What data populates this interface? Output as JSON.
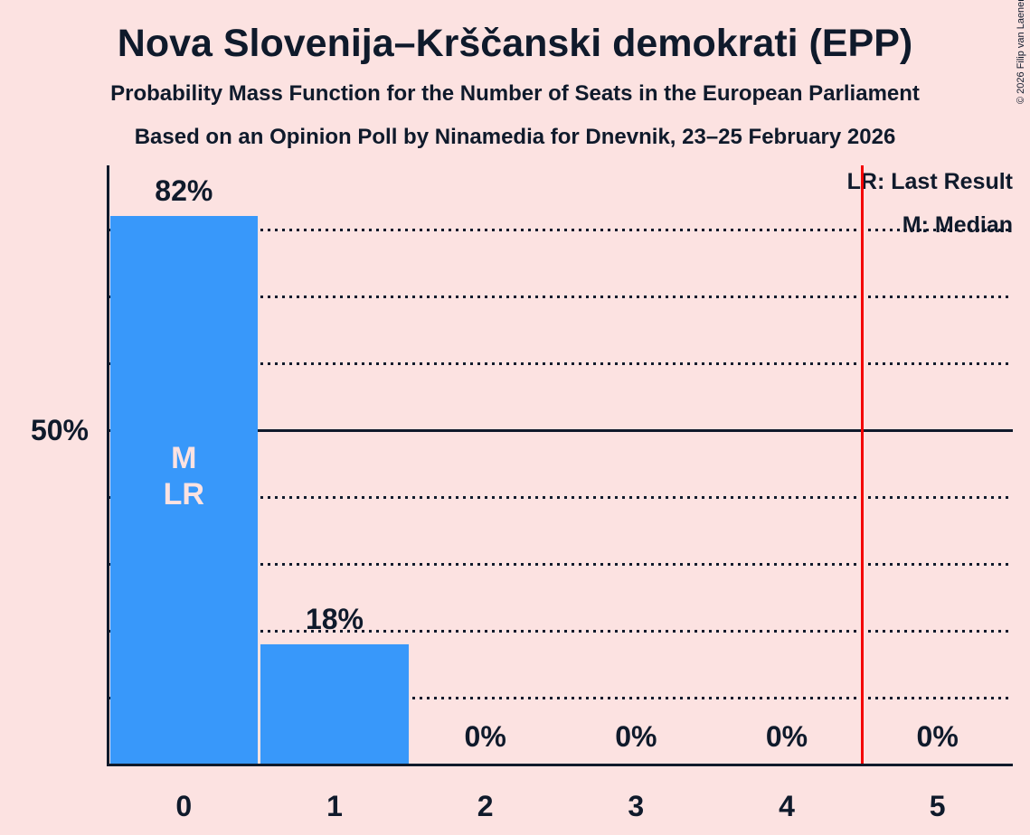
{
  "page": {
    "title": "Nova Slovenija–Krščanski demokrati (EPP)",
    "subtitle": "Probability Mass Function for the Number of Seats in the European Parliament",
    "subsubtitle": "Based on an Opinion Poll by Ninamedia for Dnevnik, 23–25 February 2026",
    "copyright": "© 2026 Filip van Laenen"
  },
  "legend": {
    "last_result": "LR: Last Result",
    "median": "M: Median"
  },
  "y_axis": {
    "label_50": "50%"
  },
  "colors": {
    "background": "#fce2e1",
    "bar": "#3898fa",
    "text": "#0f1a2b",
    "bar_annotation_text": "#fce2e1",
    "red_line": "#f30000"
  },
  "chart_data": {
    "type": "bar",
    "title": "Nova Slovenija–Krščanski demokrati (EPP)",
    "subtitle": "Probability Mass Function for the Number of Seats in the European Parliament",
    "categories": [
      "0",
      "1",
      "2",
      "3",
      "4",
      "5"
    ],
    "values": [
      82,
      18,
      0,
      0,
      0,
      0
    ],
    "value_labels": [
      "82%",
      "18%",
      "0%",
      "0%",
      "0%",
      "0%"
    ],
    "xlabel": "",
    "ylabel": "",
    "ylim": [
      0,
      90
    ],
    "y_tick_labeled": {
      "pct": 50,
      "label": "50%"
    },
    "gridline_pcts": [
      10,
      20,
      30,
      40,
      60,
      70,
      80
    ],
    "solid_line_pct": 50,
    "grid": "dotted horizontal",
    "legend_position": "top-right",
    "median_bar_index": 0,
    "last_result_bar_index": 0,
    "bar0_annotation": [
      "M",
      "LR"
    ],
    "red_line_x": 4.5
  }
}
